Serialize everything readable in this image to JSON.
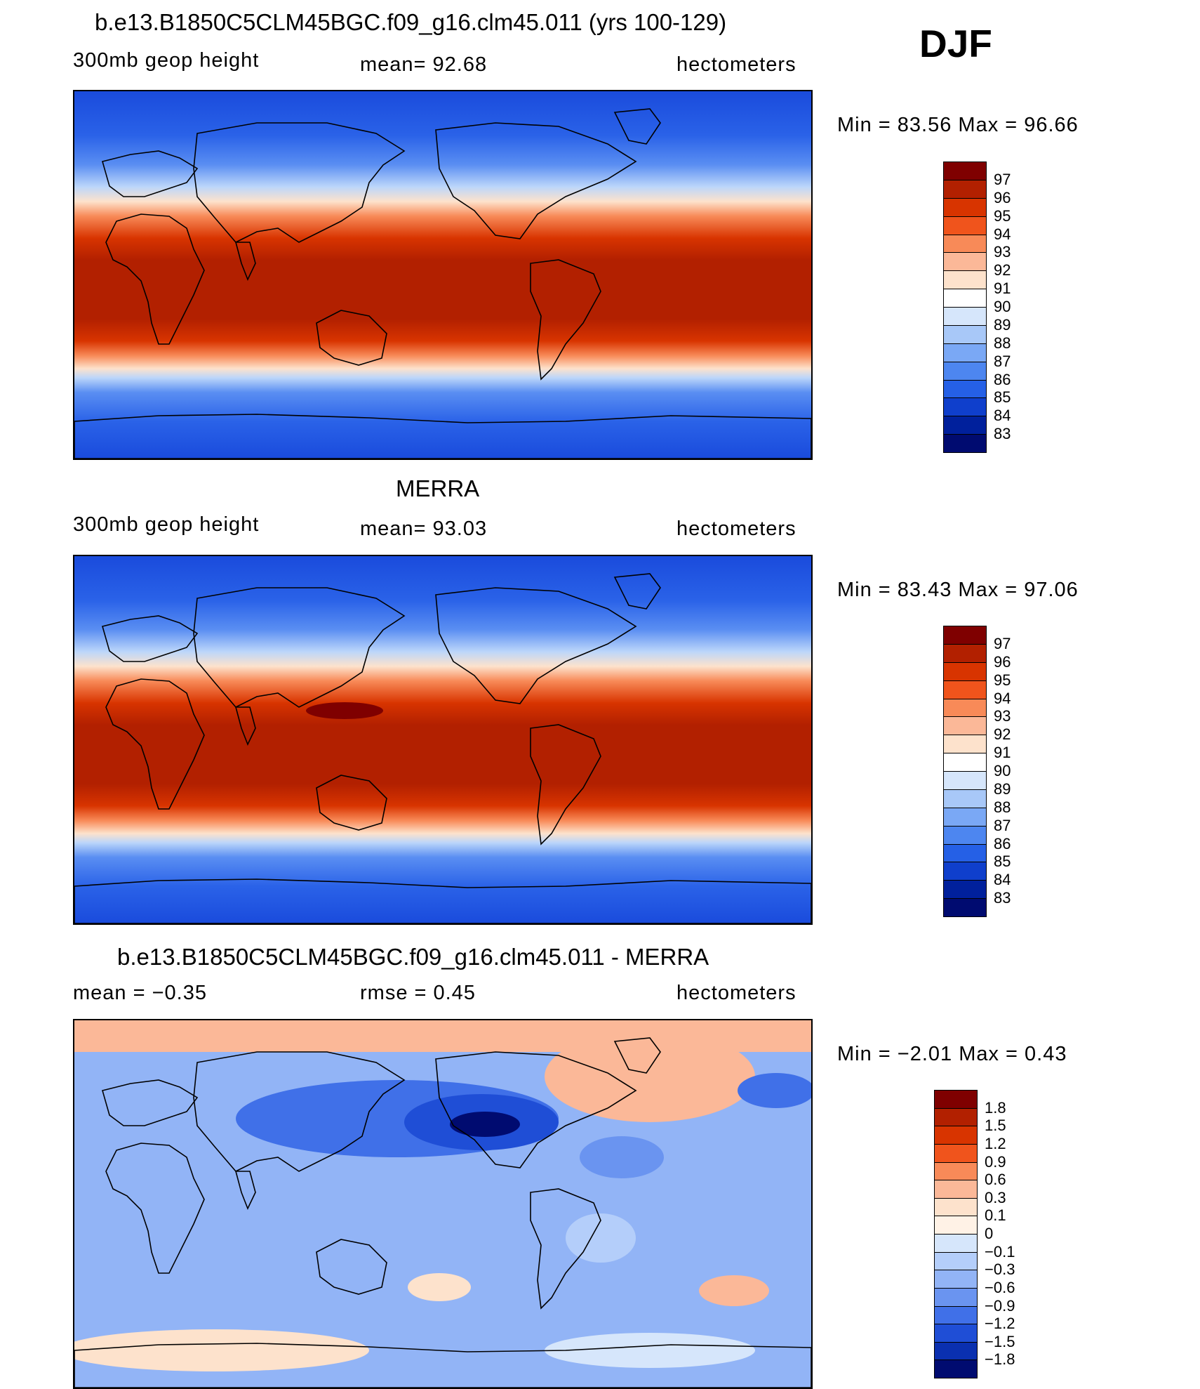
{
  "season": "DJF",
  "panels": [
    {
      "title": "b.e13.B1850C5CLM45BGC.f09_g16.clm45.011 (yrs 100-129)",
      "left_label": "300mb  geop  height",
      "center_label": "mean=   92.68",
      "right_label": "hectometers",
      "minmax": "Min  =    83.56  Max  =    96.66",
      "colorbar_ticks": [
        "97",
        "96",
        "95",
        "94",
        "93",
        "92",
        "91",
        "90",
        "89",
        "88",
        "87",
        "86",
        "85",
        "84",
        "83"
      ]
    },
    {
      "title": "MERRA",
      "left_label": "300mb  geop  height",
      "center_label": "mean=   93.03",
      "right_label": "hectometers",
      "minmax": "Min  =    83.43  Max  =    97.06",
      "colorbar_ticks": [
        "97",
        "96",
        "95",
        "94",
        "93",
        "92",
        "91",
        "90",
        "89",
        "88",
        "87",
        "86",
        "85",
        "84",
        "83"
      ]
    },
    {
      "title": "b.e13.B1850C5CLM45BGC.f09_g16.clm45.011 - MERRA",
      "left_label": "mean  =    −0.35",
      "center_label": "rmse  =     0.45",
      "right_label": "hectometers",
      "minmax": "Min  =    −2.01  Max  =      0.43",
      "colorbar_ticks": [
        "1.8",
        "1.5",
        "1.2",
        "0.9",
        "0.6",
        "0.3",
        "0.1",
        "0",
        "−0.1",
        "−0.3",
        "−0.6",
        "−0.9",
        "−1.2",
        "−1.5",
        "−1.8"
      ]
    }
  ],
  "colors": {
    "field_scale": [
      "#7f0000",
      "#b22000",
      "#d83400",
      "#f0541c",
      "#f88a58",
      "#fbb898",
      "#fde2cc",
      "#ffffff",
      "#d6e6fb",
      "#a8c8f8",
      "#7aa8f5",
      "#4d86f0",
      "#2560e6",
      "#0f3fcc",
      "#00209c",
      "#000b70"
    ],
    "diff_scale": [
      "#7f0000",
      "#b22000",
      "#d83400",
      "#f0541c",
      "#f88a58",
      "#fbb898",
      "#fde2cc",
      "#fff2e6",
      "#d6e6fb",
      "#b4cefa",
      "#92b4f6",
      "#6a94f0",
      "#4070e8",
      "#1f4ed6",
      "#0a30b0",
      "#000b70"
    ]
  }
}
